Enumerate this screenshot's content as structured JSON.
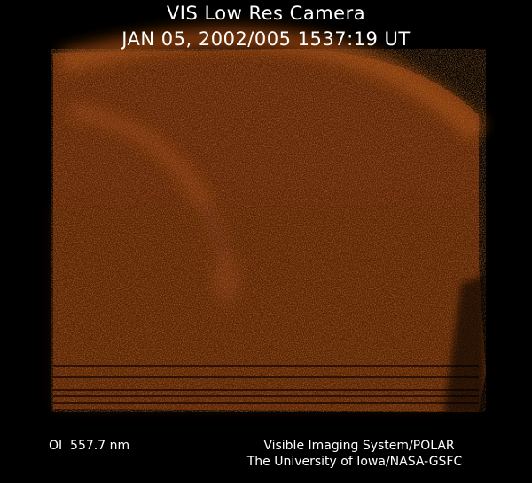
{
  "header": {
    "instrument": "VIS Low Res Camera",
    "timestamp": "JAN 05, 2002/005 1537:19 UT"
  },
  "image": {
    "subject": "aurora-oval",
    "colors": {
      "background": "#000000",
      "base": "#5e2407",
      "bright": "#9a4514"
    }
  },
  "footer": {
    "wavelength": "OI  557.7 nm",
    "credit_line1": "Visible Imaging System/POLAR",
    "credit_line2": "The University of Iowa/NASA-GSFC"
  }
}
